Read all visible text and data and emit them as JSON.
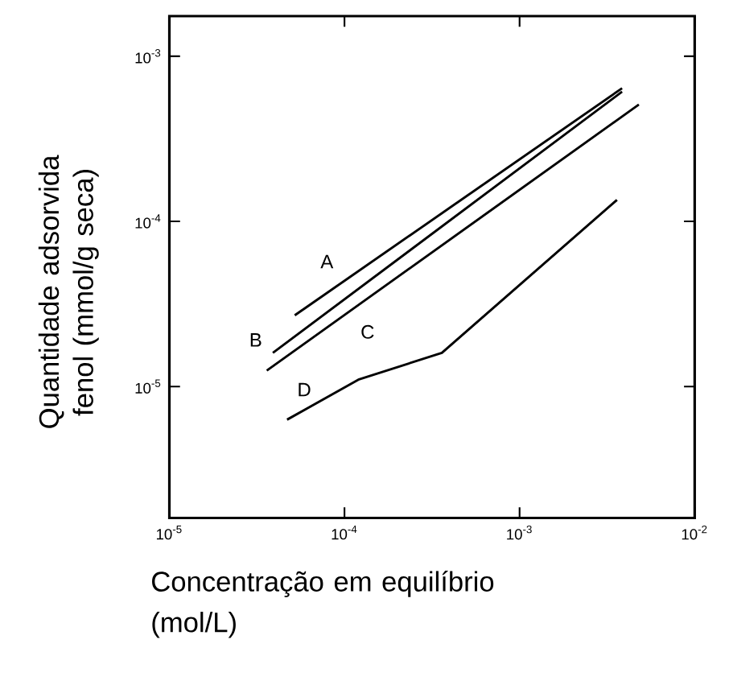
{
  "chart_data": {
    "type": "line",
    "xlabel": "Concentração em equilíbrio (mol/L)",
    "ylabel": "Quantidade adsorvida fenol (mmol/g seca)",
    "log": "xy",
    "grid": false,
    "marker": "none",
    "line_style": "solid",
    "xlim": [
      1e-05,
      0.01
    ],
    "ylim": [
      1.6e-06,
      0.00175
    ],
    "xticks": [
      {
        "value": 1e-05,
        "label": "10$^{-5}$"
      },
      {
        "value": 0.0001,
        "label": "10$^{-4}$"
      },
      {
        "value": 0.001,
        "label": "10$^{-3}$"
      },
      {
        "value": 0.01,
        "label": "10$^{-2}$"
      }
    ],
    "yticks": [
      {
        "value": 1e-05,
        "label": "10$^{-5}$"
      },
      {
        "value": 0.0001,
        "label": "10$^{-4}$"
      },
      {
        "value": 0.001,
        "label": "10$^{-3}$"
      }
    ],
    "series": [
      {
        "name": "A",
        "color": "#000000",
        "x": [
          5.2e-05,
          0.00385
        ],
        "values": [
          2.7e-05,
          0.00064
        ]
      },
      {
        "name": "B",
        "color": "#000000",
        "x": [
          3.9e-05,
          0.00385
        ],
        "values": [
          1.6e-05,
          0.00061
        ]
      },
      {
        "name": "C",
        "color": "#000000",
        "x": [
          3.6e-05,
          0.0048
        ],
        "values": [
          1.25e-05,
          0.00051
        ]
      },
      {
        "name": "D",
        "color": "#000000",
        "x": [
          4.7e-05,
          0.00012,
          0.00036,
          0.0036
        ],
        "values": [
          6.3e-06,
          1.1e-05,
          1.6e-05,
          0.000135
        ]
      }
    ]
  }
}
